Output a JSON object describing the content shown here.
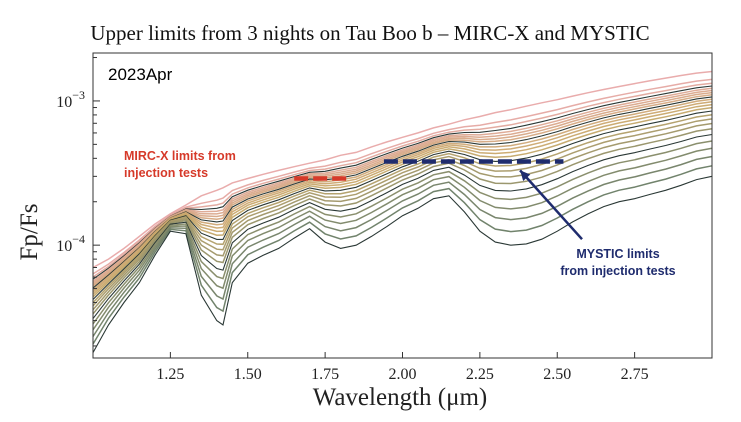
{
  "chart_data": {
    "type": "line",
    "title": "Upper limits from 3 nights on Tau Boo b – MIRC-X and MYSTIC",
    "xlabel": "Wavelength (μm)",
    "ylabel": "Fp/Fs",
    "xlim": [
      1.0,
      3.0
    ],
    "ylim": [
      1.65e-05,
      0.00215
    ],
    "yscale": "log",
    "x_ticks": [
      "1.25",
      "1.50",
      "1.75",
      "2.00",
      "2.25",
      "2.50",
      "2.75"
    ],
    "x_tick_values": [
      1.25,
      1.5,
      1.75,
      2.0,
      2.25,
      2.5,
      2.75
    ],
    "y_ticks": [
      "10^−3",
      "10^−4"
    ],
    "y_tick_values": [
      0.001,
      0.0001
    ],
    "corner_label": "2023Apr",
    "series_count": 24,
    "series_envelope": {
      "x": [
        1.0,
        1.05,
        1.1,
        1.15,
        1.2,
        1.25,
        1.3,
        1.35,
        1.4,
        1.42,
        1.45,
        1.5,
        1.55,
        1.6,
        1.65,
        1.7,
        1.75,
        1.8,
        1.85,
        1.9,
        1.95,
        2.0,
        2.05,
        2.1,
        2.15,
        2.2,
        2.25,
        2.3,
        2.35,
        2.4,
        2.45,
        2.5,
        2.55,
        2.6,
        2.65,
        2.7,
        2.75,
        2.8,
        2.85,
        2.9,
        2.95,
        3.0
      ],
      "upper": [
        7e-05,
        8e-05,
        9.5e-05,
        0.000115,
        0.00014,
        0.000165,
        0.00019,
        0.00022,
        0.00024,
        0.00025,
        0.00027,
        0.00029,
        0.00031,
        0.00033,
        0.00035,
        0.00037,
        0.00039,
        0.00042,
        0.00044,
        0.00048,
        0.00052,
        0.00056,
        0.0006,
        0.00065,
        0.00069,
        0.00074,
        0.00078,
        0.00083,
        0.00087,
        0.00092,
        0.00097,
        0.00102,
        0.00108,
        0.00114,
        0.0012,
        0.00126,
        0.00132,
        0.00138,
        0.00144,
        0.0015,
        0.00156,
        0.0016
      ],
      "lower": [
        1.8e-05,
        2.8e-05,
        4e-05,
        5.5e-05,
        8.5e-05,
        0.000125,
        0.00012,
        4.5e-05,
        3e-05,
        2.8e-05,
        5.5e-05,
        7.5e-05,
        8.5e-05,
        9.5e-05,
        0.000112,
        0.00013,
        0.000105,
        9.5e-05,
        0.0001,
        0.000115,
        0.000135,
        0.00016,
        0.00018,
        0.00021,
        0.00022,
        0.00017,
        0.000125,
        0.000105,
        0.0001,
        0.000102,
        0.00011,
        0.000125,
        0.000145,
        0.000165,
        0.000185,
        0.0002,
        0.00021,
        0.000225,
        0.00024,
        0.00026,
        0.000285,
        0.0003
      ]
    },
    "annotations": [
      {
        "label_lines": [
          "MIRC-X limits from",
          "injection tests"
        ],
        "x_range": [
          1.65,
          1.82
        ],
        "y": 0.00029,
        "color": "#d63a2a"
      },
      {
        "label_lines": [
          "MYSTIC limits",
          "from injection tests"
        ],
        "x_range": [
          1.94,
          2.52
        ],
        "y": 0.00038,
        "color": "#1f2c6e",
        "arrow_from": [
          2.58,
          0.00011
        ],
        "arrow_to": [
          2.38,
          0.00033
        ]
      }
    ]
  }
}
